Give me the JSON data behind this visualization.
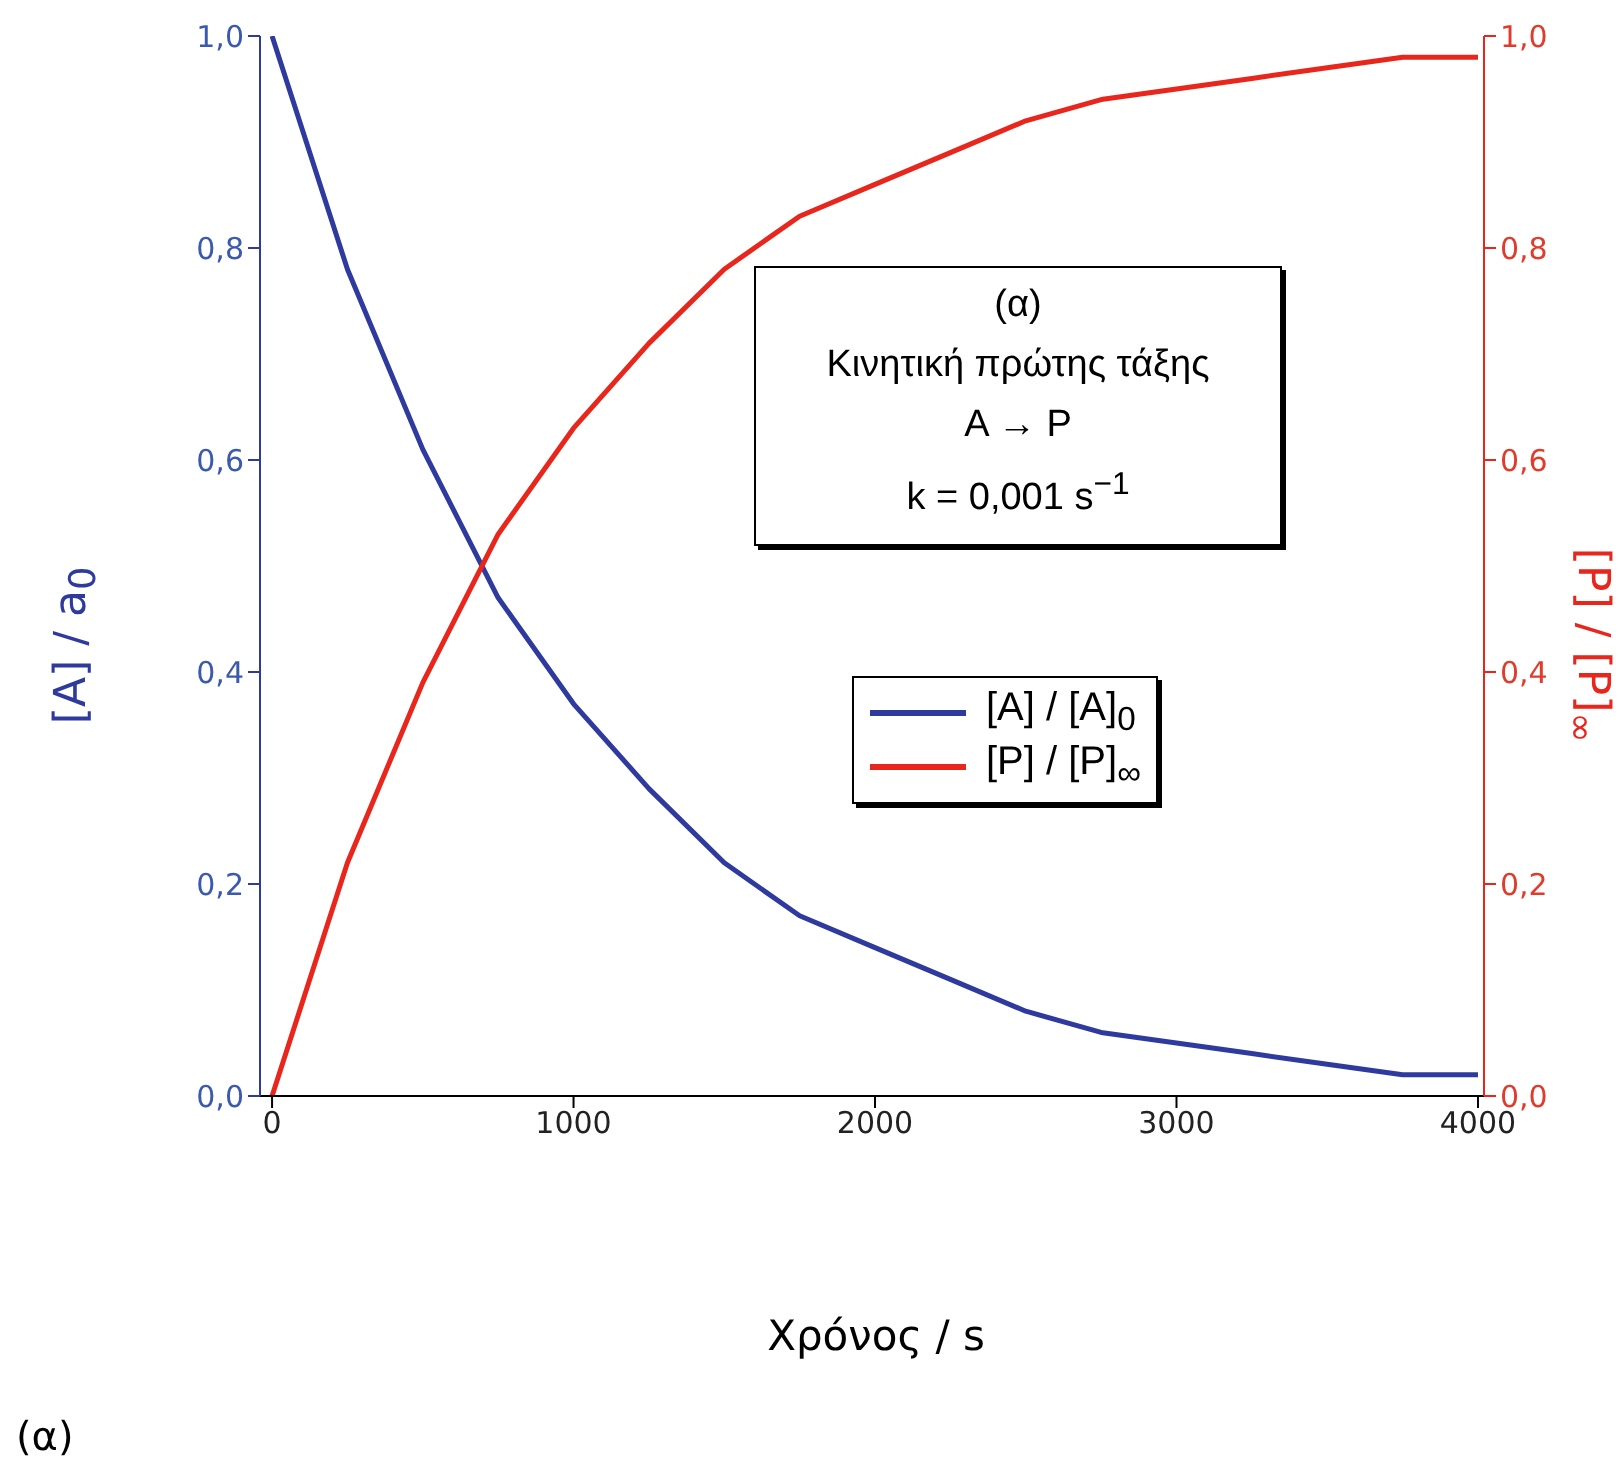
{
  "chart_data": {
    "type": "line",
    "xlabel": "Χρόνος / s",
    "ylabel": "[A] / a$_{0}$",
    "y2label": "[P] / [P]$_{∞}$",
    "x": [
      0,
      250,
      500,
      750,
      1000,
      1250,
      1500,
      1750,
      2000,
      2250,
      2500,
      2750,
      3000,
      3250,
      3500,
      3750,
      4000
    ],
    "series": [
      {
        "name": "[A] / [A]$_{0}$",
        "color": "#2e3a9e",
        "values": [
          1.0,
          0.78,
          0.61,
          0.47,
          0.37,
          0.29,
          0.22,
          0.17,
          0.14,
          0.11,
          0.08,
          0.06,
          0.05,
          0.04,
          0.03,
          0.02,
          0.02
        ]
      },
      {
        "name": "[P] / [P]$_{∞}$",
        "color": "#e8261c",
        "axis": "y2",
        "values": [
          0.0,
          0.22,
          0.39,
          0.53,
          0.63,
          0.71,
          0.78,
          0.83,
          0.86,
          0.89,
          0.92,
          0.94,
          0.95,
          0.96,
          0.97,
          0.98,
          0.98
        ]
      }
    ],
    "xlim": [
      -40,
      4020
    ],
    "xticks": [
      0,
      1000,
      2000,
      3000,
      4000
    ],
    "ylim": [
      0,
      1
    ],
    "yticks": [
      {
        "value": 0,
        "label": "0,0"
      },
      {
        "value": 0.2,
        "label": "0,2"
      },
      {
        "value": 0.4,
        "label": "0,4"
      },
      {
        "value": 0.6,
        "label": "0,6"
      },
      {
        "value": 0.8,
        "label": "0,8"
      },
      {
        "value": 1,
        "label": "1,0"
      }
    ],
    "y2lim": [
      0,
      1
    ],
    "y2ticks": [
      {
        "value": 0,
        "label": "0,0"
      },
      {
        "value": 0.2,
        "label": "0,2"
      },
      {
        "value": 0.4,
        "label": "0,4"
      },
      {
        "value": 0.6,
        "label": "0,6"
      },
      {
        "value": 0.8,
        "label": "0,8"
      },
      {
        "value": 1,
        "label": "1,0"
      }
    ],
    "legend": "right",
    "grid": false,
    "marker": "none",
    "line_style": "solid",
    "annotations": [
      "(α)",
      "Κινητική πρώτης τάξης",
      "A → P",
      "k = 0,001 s$^{−1}$",
      "(α)"
    ]
  }
}
